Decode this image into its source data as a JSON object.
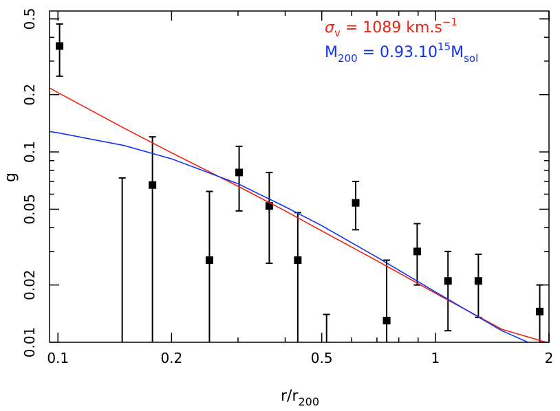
{
  "chart_data": {
    "type": "scatter",
    "xscale": "log",
    "yscale": "log",
    "xlim": [
      0.095,
      2.0
    ],
    "ylim": [
      0.01,
      0.55
    ],
    "xlabel": "r/r",
    "xlabel_sub": "200",
    "ylabel": "g",
    "x_ticks": [
      0.1,
      0.2,
      0.5,
      1,
      2
    ],
    "x_tick_labels": [
      "0.1",
      "0.2",
      "0.5",
      "1",
      "2"
    ],
    "y_ticks": [
      0.01,
      0.02,
      0.05,
      0.1,
      0.2,
      0.5
    ],
    "y_tick_labels": [
      "0.01",
      "0.02",
      "0.05",
      "0.1",
      "0.2",
      "0.5"
    ],
    "series": [
      {
        "style": "points-with-errorbars",
        "color": "#000000",
        "points": [
          {
            "x": 0.101,
            "y": 0.36,
            "ylo": 0.25,
            "yhi": 0.47
          },
          {
            "x": 0.148,
            "ylo": 0.01,
            "yhi": 0.073
          },
          {
            "x": 0.178,
            "y": 0.067,
            "ylo": 0.01,
            "yhi": 0.12
          },
          {
            "x": 0.252,
            "y": 0.027,
            "ylo": 0.01,
            "yhi": 0.062
          },
          {
            "x": 0.302,
            "y": 0.078,
            "ylo": 0.049,
            "yhi": 0.107
          },
          {
            "x": 0.363,
            "y": 0.052,
            "ylo": 0.026,
            "yhi": 0.078
          },
          {
            "x": 0.432,
            "y": 0.027,
            "ylo": 0.01,
            "yhi": 0.048
          },
          {
            "x": 0.515,
            "ylo": 0.01,
            "yhi": 0.014
          },
          {
            "x": 0.615,
            "y": 0.054,
            "ylo": 0.039,
            "yhi": 0.07
          },
          {
            "x": 0.743,
            "y": 0.013,
            "ylo": 0.01,
            "yhi": 0.027
          },
          {
            "x": 0.895,
            "y": 0.03,
            "ylo": 0.02,
            "yhi": 0.042
          },
          {
            "x": 1.08,
            "y": 0.021,
            "ylo": 0.0115,
            "yhi": 0.03
          },
          {
            "x": 1.3,
            "y": 0.021,
            "ylo": 0.0135,
            "yhi": 0.029
          },
          {
            "x": 1.89,
            "y": 0.0145,
            "ylo": 0.01,
            "yhi": 0.02
          }
        ]
      },
      {
        "style": "line",
        "color": "#ee2211",
        "x": [
          0.095,
          0.1,
          0.15,
          0.2,
          0.3,
          0.4,
          0.5,
          0.7,
          1.0,
          1.5,
          2.0
        ],
        "y": [
          0.217,
          0.205,
          0.133,
          0.099,
          0.066,
          0.049,
          0.0385,
          0.0268,
          0.0181,
          0.0117,
          0.0099
        ]
      },
      {
        "style": "line",
        "color": "#1133ee",
        "x": [
          0.095,
          0.1,
          0.15,
          0.2,
          0.3,
          0.4,
          0.5,
          0.7,
          1.0,
          1.5,
          1.8
        ],
        "y": [
          0.128,
          0.126,
          0.108,
          0.092,
          0.068,
          0.0515,
          0.041,
          0.028,
          0.0184,
          0.0115,
          0.0098
        ]
      }
    ],
    "annotations": [
      {
        "color": "#ee2211",
        "sym": "σ",
        "sub": "v",
        "mid": " = 1089 km.s",
        "sup": "−1"
      },
      {
        "color": "#1133ee",
        "base": "M",
        "sub": "200",
        "mid": " = 0.93.10",
        "sup": "15",
        "tail": "M",
        "tail_sub": "sol"
      }
    ]
  }
}
